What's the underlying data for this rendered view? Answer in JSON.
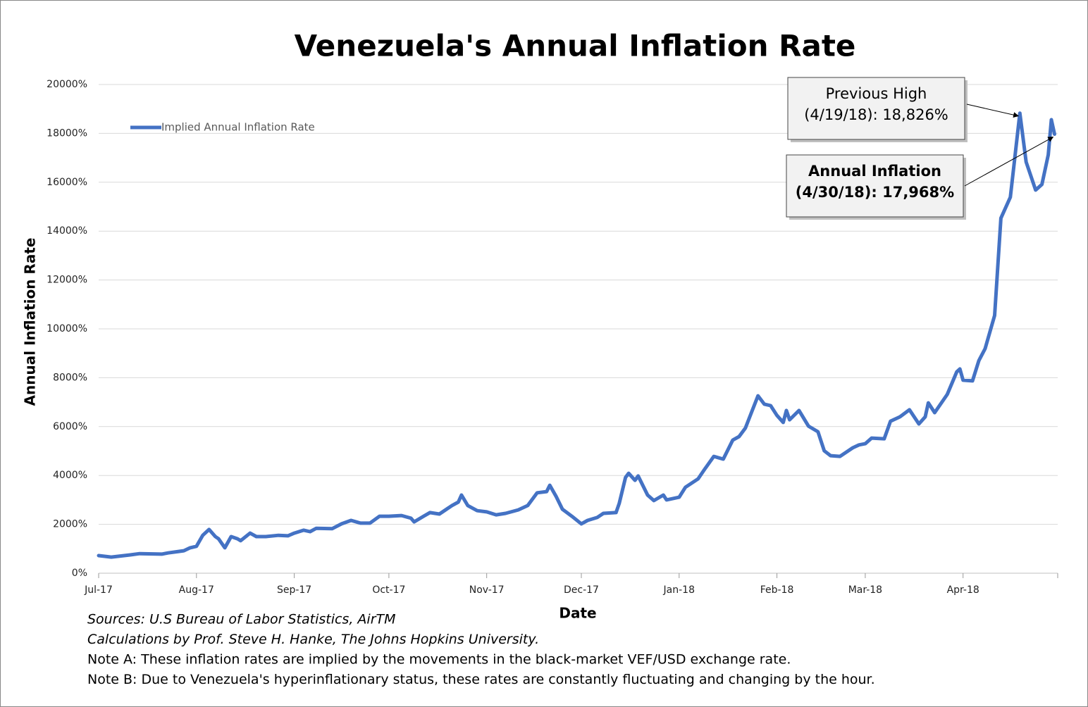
{
  "chart_data": {
    "type": "line",
    "title": "Venezuela's Annual Inflation Rate",
    "x_label": "Date",
    "y_label": "Annual Inflation Rate",
    "legend": "top-left",
    "grid": true,
    "xlim": [
      "2017-07-01",
      "2018-05-01"
    ],
    "xticks": [
      {
        "value": "2017-07-01",
        "label": "Jul-17"
      },
      {
        "value": "2017-08-01",
        "label": "Aug-17"
      },
      {
        "value": "2017-09-01",
        "label": "Sep-17"
      },
      {
        "value": "2017-10-01",
        "label": "Oct-17"
      },
      {
        "value": "2017-11-01",
        "label": "Nov-17"
      },
      {
        "value": "2017-12-01",
        "label": "Dec-17"
      },
      {
        "value": "2018-01-01",
        "label": "Jan-18"
      },
      {
        "value": "2018-02-01",
        "label": "Feb-18"
      },
      {
        "value": "2018-03-01",
        "label": "Mar-18"
      },
      {
        "value": "2018-04-01",
        "label": "Apr-18"
      }
    ],
    "ylim": [
      0,
      20000
    ],
    "yticks": [
      {
        "value": 0,
        "label": "0%"
      },
      {
        "value": 2000,
        "label": "2000%"
      },
      {
        "value": 4000,
        "label": "4000%"
      },
      {
        "value": 6000,
        "label": "6000%"
      },
      {
        "value": 8000,
        "label": "8000%"
      },
      {
        "value": 10000,
        "label": "10000%"
      },
      {
        "value": 12000,
        "label": "12000%"
      },
      {
        "value": 14000,
        "label": "14000%"
      },
      {
        "value": 16000,
        "label": "16000%"
      },
      {
        "value": 18000,
        "label": "18000%"
      },
      {
        "value": 20000,
        "label": "20000%"
      }
    ],
    "x": [
      "2017-07-01",
      "2017-07-05",
      "2017-07-11",
      "2017-07-14",
      "2017-07-21",
      "2017-07-23",
      "2017-07-28",
      "2017-07-30",
      "2017-08-01",
      "2017-08-03",
      "2017-08-05",
      "2017-08-07",
      "2017-08-08",
      "2017-08-10",
      "2017-08-12",
      "2017-08-14",
      "2017-08-15",
      "2017-08-18",
      "2017-08-20",
      "2017-08-23",
      "2017-08-27",
      "2017-08-30",
      "2017-09-01",
      "2017-09-04",
      "2017-09-06",
      "2017-09-08",
      "2017-09-13",
      "2017-09-16",
      "2017-09-19",
      "2017-09-22",
      "2017-09-25",
      "2017-09-28",
      "2017-10-01",
      "2017-10-05",
      "2017-10-08",
      "2017-10-09",
      "2017-10-12",
      "2017-10-14",
      "2017-10-17",
      "2017-10-21",
      "2017-10-23",
      "2017-10-24",
      "2017-10-26",
      "2017-10-29",
      "2017-11-01",
      "2017-11-04",
      "2017-11-07",
      "2017-11-11",
      "2017-11-14",
      "2017-11-17",
      "2017-11-20",
      "2017-11-21",
      "2017-11-23",
      "2017-11-25",
      "2017-11-28",
      "2017-12-01",
      "2017-12-03",
      "2017-12-06",
      "2017-12-08",
      "2017-12-12",
      "2017-12-13",
      "2017-12-15",
      "2017-12-16",
      "2017-12-18",
      "2017-12-19",
      "2017-12-22",
      "2017-12-24",
      "2017-12-27",
      "2017-12-28",
      "2018-01-01",
      "2018-01-03",
      "2018-01-07",
      "2018-01-09",
      "2018-01-12",
      "2018-01-15",
      "2018-01-18",
      "2018-01-20",
      "2018-01-22",
      "2018-01-24",
      "2018-01-26",
      "2018-01-28",
      "2018-01-30",
      "2018-02-01",
      "2018-02-03",
      "2018-02-04",
      "2018-02-05",
      "2018-02-08",
      "2018-02-11",
      "2018-02-14",
      "2018-02-16",
      "2018-02-18",
      "2018-02-21",
      "2018-02-25",
      "2018-02-27",
      "2018-03-01",
      "2018-03-03",
      "2018-03-07",
      "2018-03-09",
      "2018-03-12",
      "2018-03-15",
      "2018-03-18",
      "2018-03-20",
      "2018-03-21",
      "2018-03-23",
      "2018-03-27",
      "2018-03-30",
      "2018-03-31",
      "2018-04-01",
      "2018-04-04",
      "2018-04-06",
      "2018-04-08",
      "2018-04-11",
      "2018-04-13",
      "2018-04-16",
      "2018-04-19",
      "2018-04-21",
      "2018-04-24",
      "2018-04-26",
      "2018-04-28",
      "2018-04-29",
      "2018-04-30"
    ],
    "series": [
      {
        "name": "Implied Annual Inflation Rate",
        "color": "#4472c4",
        "values": [
          720,
          660,
          750,
          800,
          780,
          830,
          920,
          1040,
          1100,
          1550,
          1790,
          1500,
          1410,
          1040,
          1500,
          1410,
          1330,
          1640,
          1500,
          1500,
          1550,
          1530,
          1640,
          1760,
          1700,
          1840,
          1820,
          2020,
          2160,
          2050,
          2050,
          2330,
          2330,
          2360,
          2250,
          2100,
          2330,
          2480,
          2420,
          2770,
          2910,
          3200,
          2770,
          2560,
          2510,
          2390,
          2450,
          2590,
          2770,
          3290,
          3340,
          3600,
          3140,
          2620,
          2330,
          2020,
          2160,
          2280,
          2450,
          2480,
          2850,
          3920,
          4090,
          3800,
          3980,
          3200,
          2970,
          3200,
          3000,
          3110,
          3520,
          3860,
          4240,
          4780,
          4670,
          5450,
          5590,
          5940,
          6600,
          7260,
          6920,
          6860,
          6460,
          6170,
          6660,
          6280,
          6660,
          6020,
          5790,
          5010,
          4810,
          4780,
          5130,
          5250,
          5300,
          5530,
          5500,
          6220,
          6400,
          6690,
          6110,
          6400,
          6970,
          6570,
          7320,
          8240,
          8360,
          7900,
          7870,
          8700,
          9190,
          10550,
          14530,
          15390,
          18826,
          16830,
          15680,
          15910,
          17120,
          18560,
          17968
        ]
      }
    ],
    "annotations": [
      {
        "lines": [
          "Previous High",
          "(4/19/18): 18,826%"
        ],
        "x": "2018-04-19",
        "value": 18826
      },
      {
        "lines": [
          "Annual Inflation",
          "(4/30/18): 17,968%"
        ],
        "x": "2018-04-30",
        "value": 17968
      }
    ],
    "notes": [
      "Sources: U.S Bureau of Labor Statistics, AirTM",
      "Calculations by Prof. Steve H. Hanke, The Johns Hopkins University.",
      "Note A: These inflation rates are implied by the movements in the black-market VEF/USD exchange rate.",
      "Note B: Due to Venezuela's hyperinflationary status, these rates are constantly fluctuating and changing by the hour."
    ]
  }
}
